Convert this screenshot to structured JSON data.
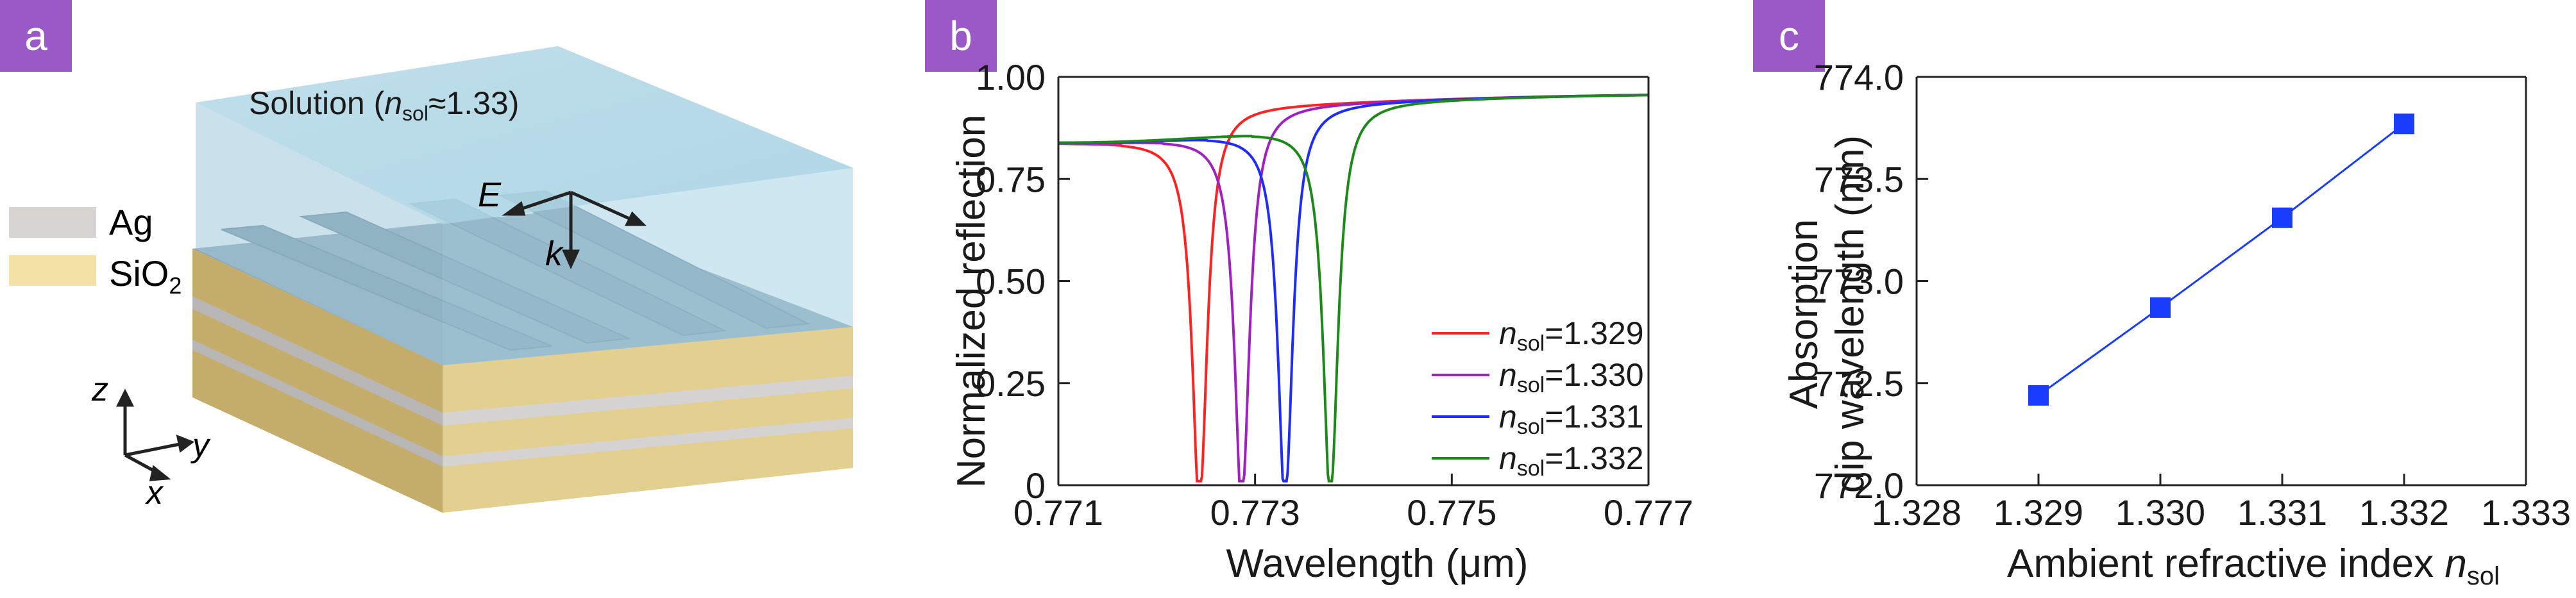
{
  "panels": {
    "a": "a",
    "b": "b",
    "c": "c"
  },
  "panel_a": {
    "solution_label": "Solution (",
    "n_symbol": "n",
    "n_sub": "sol",
    "n_value": "≈1.33)",
    "legend": [
      {
        "label": "Ag",
        "color": "#d7d4d2"
      },
      {
        "label": "SiO",
        "sub": "2",
        "color": "#f4e3a6"
      }
    ],
    "field_E": "E",
    "field_k": "k",
    "axis_z": "z",
    "axis_y": "y",
    "axis_x": "x"
  },
  "chart_data": [
    {
      "type": "line",
      "xlabel": "Wavelength (μm)",
      "ylabel": "Normalized reflection",
      "xlim": [
        0.771,
        0.777
      ],
      "ylim": [
        0,
        1.0
      ],
      "xticks": [
        "0.771",
        "0.773",
        "0.775",
        "0.777"
      ],
      "yticks": [
        "0",
        "0.25",
        "0.50",
        "0.75",
        "1.00"
      ],
      "legend_position": "bottom-right",
      "series": [
        {
          "name": "n_sol=1.329",
          "legend_n": "n",
          "legend_sub": "sol",
          "legend_val": "=1.329",
          "color": "#ff2222",
          "dip": 0.77244
        },
        {
          "name": "n_sol=1.330",
          "legend_n": "n",
          "legend_sub": "sol",
          "legend_val": "=1.330",
          "color": "#a020c0",
          "dip": 0.77287
        },
        {
          "name": "n_sol=1.331",
          "legend_n": "n",
          "legend_sub": "sol",
          "legend_val": "=1.331",
          "color": "#1f2bff",
          "dip": 0.77331
        },
        {
          "name": "n_sol=1.332",
          "legend_n": "n",
          "legend_sub": "sol",
          "legend_val": "=1.332",
          "color": "#1b8a1b",
          "dip": 0.77377
        }
      ]
    },
    {
      "type": "scatter",
      "xlabel": "Ambient refractive index ",
      "xlabel_n": "n",
      "xlabel_sub": "sol",
      "ylabel_line1": "Absorption",
      "ylabel_line2": "dip wavelength (nm)",
      "xlim": [
        1.328,
        1.333
      ],
      "ylim": [
        772.0,
        774.0
      ],
      "xticks": [
        "1.328",
        "1.329",
        "1.330",
        "1.331",
        "1.332",
        "1.333"
      ],
      "yticks": [
        "772.0",
        "772.5",
        "773.0",
        "773.5",
        "774.0"
      ],
      "color": "#1a3cff",
      "x": [
        1.329,
        1.33,
        1.331,
        1.332
      ],
      "y": [
        772.44,
        772.87,
        773.31,
        773.77
      ]
    }
  ]
}
